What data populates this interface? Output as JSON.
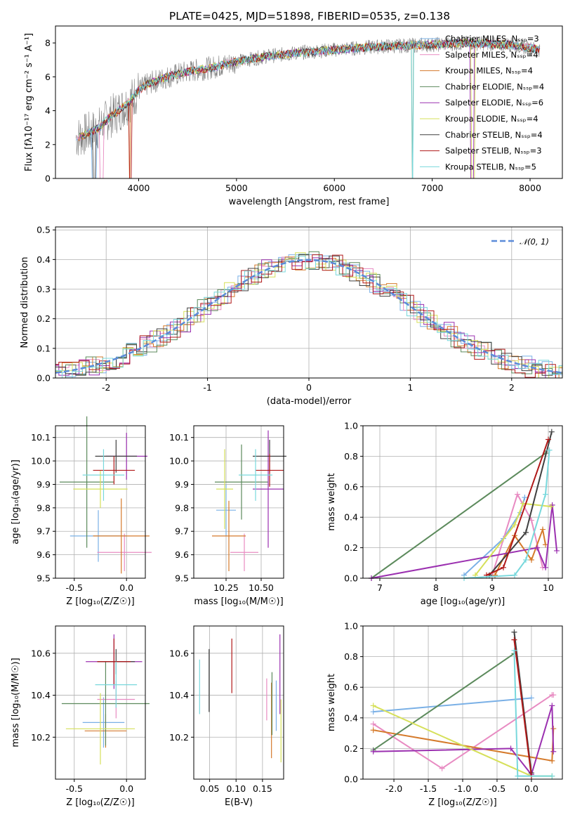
{
  "title": "PLATE=0425, MJD=51898, FIBERID=0535, z=0.138",
  "colors": {
    "data": "#808080",
    "models": [
      "#7ab0e6",
      "#e88bc2",
      "#d57a2b",
      "#5c8a5c",
      "#9b30b0",
      "#d6e05a",
      "#404040",
      "#b01818",
      "#78d8dc"
    ],
    "normal_curve": "#5b8bd9"
  },
  "chart_data": [
    {
      "id": "spectrum",
      "type": "line",
      "xlabel": "wavelength [Angstrom, rest frame]",
      "ylabel": "Flux [fλ10⁻¹⁷ erg cm⁻² s⁻¹ A⁻¹]",
      "xlim": [
        3150,
        8330
      ],
      "ylim": [
        0,
        9
      ],
      "xticks": [
        4000,
        5000,
        6000,
        7000,
        8000
      ],
      "yticks": [
        0,
        2,
        4,
        6,
        8
      ],
      "legend_position": "top-right",
      "continuum": {
        "x": [
          3360,
          3500,
          3600,
          3700,
          3800,
          3900,
          4000,
          4100,
          4300,
          4500,
          4800,
          5000,
          5300,
          5600,
          6000,
          6500,
          7000,
          7400,
          7800,
          8100
        ],
        "y": [
          2.4,
          2.7,
          3.0,
          3.6,
          4.0,
          4.5,
          5.2,
          5.6,
          6.0,
          6.3,
          6.6,
          6.9,
          7.2,
          7.4,
          7.6,
          7.8,
          7.9,
          8.0,
          7.9,
          7.6
        ]
      },
      "series": [
        {
          "name": "Chabrier MILES",
          "nssp": 3
        },
        {
          "name": "Salpeter MILES",
          "nssp": 4
        },
        {
          "name": "Kroupa MILES",
          "nssp": 4
        },
        {
          "name": "Chabrier ELODIE",
          "nssp": 4
        },
        {
          "name": "Salpeter ELODIE",
          "nssp": 6
        },
        {
          "name": "Kroupa ELODIE",
          "nssp": 4
        },
        {
          "name": "Chabrier STELIB",
          "nssp": 4
        },
        {
          "name": "Salpeter STELIB",
          "nssp": 3
        },
        {
          "name": "Kroupa STELIB",
          "nssp": 5
        }
      ]
    },
    {
      "id": "residuals",
      "type": "histogram",
      "xlabel": "(data-model)/error",
      "ylabel": "Normed distribution",
      "xlim": [
        -2.5,
        2.5
      ],
      "ylim": [
        0,
        0.51
      ],
      "xticks": [
        -2,
        -1,
        0,
        1,
        2
      ],
      "yticks": [
        0.0,
        0.1,
        0.2,
        0.3,
        0.4,
        0.5
      ],
      "grid": true,
      "legend_position": "top-right",
      "curve_label": "𝒩(0, 1)"
    },
    {
      "id": "age_vs_Z",
      "type": "errorbar",
      "xlabel": "Z [log₁₀(Z/Z☉)]",
      "ylabel": "age  [log₁₀(age/yr)]",
      "xlim": [
        -0.68,
        0.18
      ],
      "ylim": [
        9.5,
        10.15
      ],
      "xticks": [
        -0.5,
        0.0
      ],
      "yticks": [
        9.5,
        9.6,
        9.7,
        9.8,
        9.9,
        10.0,
        10.1
      ],
      "grid": true,
      "points": [
        {
          "x": -0.27,
          "xerr": 0.27,
          "y": 9.68,
          "yerr": 0.11
        },
        {
          "x": -0.02,
          "xerr": 0.26,
          "y": 9.61,
          "yerr": 0.08
        },
        {
          "x": -0.05,
          "xerr": 0.27,
          "y": 9.68,
          "yerr": 0.16
        },
        {
          "x": -0.38,
          "xerr": 0.26,
          "y": 9.91,
          "yerr": 0.28
        },
        {
          "x": 0.0,
          "xerr": 0.2,
          "y": 10.02,
          "yerr": 0.1
        },
        {
          "x": -0.25,
          "xerr": 0.26,
          "y": 9.88,
          "yerr": 0.08
        },
        {
          "x": -0.1,
          "xerr": 0.2,
          "y": 10.02,
          "yerr": 0.07
        },
        {
          "x": -0.12,
          "xerr": 0.2,
          "y": 9.96,
          "yerr": 0.06
        },
        {
          "x": -0.22,
          "xerr": 0.2,
          "y": 9.94,
          "yerr": 0.11
        }
      ]
    },
    {
      "id": "age_vs_mass",
      "type": "errorbar",
      "xlabel": "mass [log₁₀(M/M☉)]",
      "ylabel": "",
      "xlim": [
        10.02,
        10.66
      ],
      "ylim": [
        9.5,
        10.15
      ],
      "xticks": [
        10.25,
        10.5
      ],
      "yticks": [
        9.5,
        9.6,
        9.7,
        9.8,
        9.9,
        10.0,
        10.1
      ],
      "grid": true,
      "points": [
        {
          "x": 10.25,
          "xerr": 0.07,
          "y": 9.79,
          "yerr": 0.11
        },
        {
          "x": 10.38,
          "xerr": 0.1,
          "y": 9.61,
          "yerr": 0.08
        },
        {
          "x": 10.27,
          "xerr": 0.12,
          "y": 9.68,
          "yerr": 0.15
        },
        {
          "x": 10.36,
          "xerr": 0.19,
          "y": 9.91,
          "yerr": 0.16
        },
        {
          "x": 10.55,
          "xerr": 0.11,
          "y": 9.88,
          "yerr": 0.25
        },
        {
          "x": 10.24,
          "xerr": 0.06,
          "y": 9.88,
          "yerr": 0.17
        },
        {
          "x": 10.56,
          "xerr": 0.12,
          "y": 10.02,
          "yerr": 0.07
        },
        {
          "x": 10.56,
          "xerr": 0.1,
          "y": 9.96,
          "yerr": 0.07
        },
        {
          "x": 10.46,
          "xerr": 0.12,
          "y": 9.94,
          "yerr": 0.11
        }
      ]
    },
    {
      "id": "mass_weight_vs_age",
      "type": "line",
      "xlabel": "age  [log₁₀(age/yr)]",
      "ylabel": "mass weight",
      "xlim": [
        6.7,
        10.25
      ],
      "ylim": [
        0,
        1
      ],
      "xticks": [
        7,
        8,
        9,
        10
      ],
      "yticks": [
        0.0,
        0.2,
        0.4,
        0.6,
        0.8,
        1.0
      ],
      "grid": true,
      "series": [
        {
          "x": [
            8.5,
            9.2,
            9.5,
            9.58
          ],
          "y": [
            0.02,
            0.26,
            0.43,
            0.53
          ]
        },
        {
          "x": [
            9.0,
            9.45,
            9.7,
            9.9
          ],
          "y": [
            0.02,
            0.55,
            0.38,
            0.07
          ]
        },
        {
          "x": [
            9.05,
            9.4,
            9.7,
            9.9,
            9.95
          ],
          "y": [
            0.02,
            0.28,
            0.12,
            0.32,
            0.22
          ]
        },
        {
          "x": [
            6.85,
            9.95
          ],
          "y": [
            0.0,
            0.82
          ]
        },
        {
          "x": [
            6.85,
            9.8,
            9.95,
            10.07,
            10.15
          ],
          "y": [
            0.0,
            0.2,
            0.07,
            0.48,
            0.18
          ]
        },
        {
          "x": [
            8.7,
            9.4,
            9.55,
            10.05
          ],
          "y": [
            0.02,
            0.35,
            0.49,
            0.47
          ]
        },
        {
          "x": [
            8.95,
            9.6,
            10.06
          ],
          "y": [
            0.02,
            0.3,
            0.96
          ]
        },
        {
          "x": [
            8.9,
            9.2,
            10.0
          ],
          "y": [
            0.02,
            0.07,
            0.91
          ]
        },
        {
          "x": [
            8.5,
            9.4,
            9.6,
            9.95,
            10.02
          ],
          "y": [
            0.0,
            0.02,
            0.12,
            0.55,
            0.84
          ]
        }
      ]
    },
    {
      "id": "mass_vs_Z",
      "type": "errorbar",
      "xlabel": "Z [log₁₀(Z/Z☉)]",
      "ylabel": "mass [log₁₀(M/M☉)]",
      "xlim": [
        -0.68,
        0.18
      ],
      "ylim": [
        10.0,
        10.73
      ],
      "xticks": [
        -0.5,
        0.0
      ],
      "yticks": [
        10.2,
        10.4,
        10.6
      ],
      "grid": true,
      "points": [
        {
          "x": -0.22,
          "xerr": 0.2,
          "y": 10.27,
          "yerr": 0.12
        },
        {
          "x": -0.1,
          "xerr": 0.18,
          "y": 10.38,
          "yerr": 0.09
        },
        {
          "x": -0.2,
          "xerr": 0.2,
          "y": 10.23,
          "yerr": 0.08
        },
        {
          "x": -0.2,
          "xerr": 0.42,
          "y": 10.36,
          "yerr": 0.2
        },
        {
          "x": -0.12,
          "xerr": 0.27,
          "y": 10.56,
          "yerr": 0.13
        },
        {
          "x": -0.25,
          "xerr": 0.33,
          "y": 10.24,
          "yerr": 0.17
        },
        {
          "x": -0.1,
          "xerr": 0.18,
          "y": 10.56,
          "yerr": 0.06
        },
        {
          "x": -0.12,
          "xerr": 0.16,
          "y": 10.56,
          "yerr": 0.11
        },
        {
          "x": -0.1,
          "xerr": 0.2,
          "y": 10.45,
          "yerr": 0.11
        }
      ]
    },
    {
      "id": "mass_vs_ebv",
      "type": "errorbar",
      "xlabel": "E(B-V)",
      "ylabel": "",
      "xlim": [
        0.02,
        0.19
      ],
      "ylim": [
        10.0,
        10.73
      ],
      "xticks": [
        0.05,
        0.1,
        0.15
      ],
      "yticks": [
        10.2,
        10.4,
        10.6
      ],
      "grid": true,
      "points": [
        {
          "x": 0.176,
          "y": 10.35,
          "yerr": 0.12
        },
        {
          "x": 0.158,
          "y": 10.38,
          "yerr": 0.1
        },
        {
          "x": 0.167,
          "y": 10.28,
          "yerr": 0.18
        },
        {
          "x": 0.168,
          "y": 10.36,
          "yerr": 0.15
        },
        {
          "x": 0.183,
          "y": 10.5,
          "yerr": 0.19
        },
        {
          "x": 0.185,
          "y": 10.23,
          "yerr": 0.15
        },
        {
          "x": 0.049,
          "y": 10.47,
          "yerr": 0.15
        },
        {
          "x": 0.092,
          "y": 10.54,
          "yerr": 0.13
        },
        {
          "x": 0.031,
          "y": 10.44,
          "yerr": 0.13
        }
      ]
    },
    {
      "id": "mass_weight_vs_Z",
      "type": "line",
      "xlabel": "Z [log₁₀(Z/Z☉)]",
      "ylabel": "mass weight",
      "xlim": [
        -2.45,
        0.45
      ],
      "ylim": [
        0,
        1
      ],
      "xticks": [
        -2.0,
        -1.5,
        -1.0,
        -0.5,
        0.0
      ],
      "yticks": [
        0.0,
        0.2,
        0.4,
        0.6,
        0.8,
        1.0
      ],
      "grid": true,
      "series": [
        {
          "x": [
            -2.3,
            0.0
          ],
          "y": [
            0.44,
            0.53
          ]
        },
        {
          "x": [
            -2.3,
            -1.3,
            0.3,
            0.32
          ],
          "y": [
            0.36,
            0.07,
            0.55,
            0.55
          ]
        },
        {
          "x": [
            -2.3,
            0.3,
            0.32
          ],
          "y": [
            0.32,
            0.12,
            0.33
          ]
        },
        {
          "x": [
            -2.3,
            -0.25
          ],
          "y": [
            0.19,
            0.82
          ]
        },
        {
          "x": [
            -2.3,
            -0.3,
            0.0,
            0.3,
            0.32
          ],
          "y": [
            0.18,
            0.2,
            0.03,
            0.48,
            0.18
          ]
        },
        {
          "x": [
            -2.3,
            0.0,
            0.3
          ],
          "y": [
            0.48,
            0.02,
            0.02
          ]
        },
        {
          "x": [
            -0.25,
            0.0
          ],
          "y": [
            0.96,
            0.04
          ]
        },
        {
          "x": [
            -0.25,
            0.0
          ],
          "y": [
            0.91,
            0.02
          ]
        },
        {
          "x": [
            -0.25,
            -0.2,
            0.3
          ],
          "y": [
            0.84,
            0.02,
            0.02
          ]
        }
      ]
    }
  ]
}
